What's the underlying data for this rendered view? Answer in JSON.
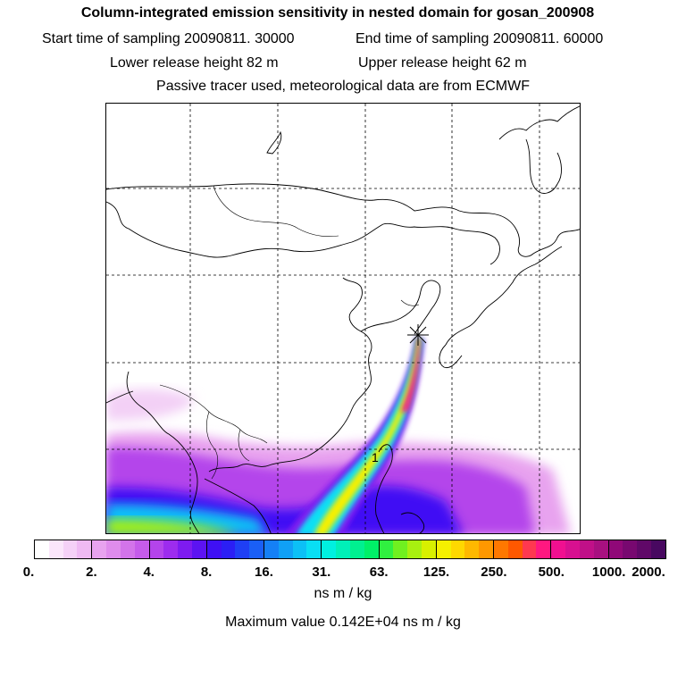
{
  "header": {
    "title": "Column-integrated emission sensitivity in nested domain for gosan_200908",
    "start_label": "Start time of sampling 20090811. 30000",
    "end_label": "End time of sampling 20090811. 60000",
    "lower_label": "Lower release height   82 m",
    "upper_label": "Upper release height   62 m",
    "subtitle": "Passive tracer used, meteorological data are from ECMWF"
  },
  "colorbar": {
    "tick_labels": [
      "0.",
      "2.",
      "4.",
      "8.",
      "16.",
      "31.",
      "63.",
      "125.",
      "250.",
      "500.",
      "1000.",
      "2000."
    ],
    "unit": "ns m / kg",
    "colors": [
      "#ffffff",
      "#fbe6fb",
      "#f5d1f7",
      "#efbaf3",
      "#e8a3ef",
      "#df8cec",
      "#d374ea",
      "#c55cea",
      "#b444eb",
      "#9d2cee",
      "#7e1bf0",
      "#5c13f2",
      "#3f10f4",
      "#2b1ff5",
      "#1f3ff5",
      "#1a5ff6",
      "#1580f6",
      "#10a0f6",
      "#0cc0f6",
      "#09dff4",
      "#00f0e0",
      "#00f0b8",
      "#00f090",
      "#00f068",
      "#30f040",
      "#70f020",
      "#a8f010",
      "#d8f000",
      "#f5f000",
      "#ffd800",
      "#ffb800",
      "#ff9800",
      "#ff7800",
      "#ff5800",
      "#ff3850",
      "#ff1880",
      "#f01090",
      "#d81090",
      "#c01088",
      "#a81080",
      "#900878",
      "#780870",
      "#600868",
      "#480860"
    ]
  },
  "footer": {
    "max_value_label": "Maximum value  0.142E+04 ns m / kg"
  },
  "map": {
    "release_marker": "release-point-star-icon"
  }
}
